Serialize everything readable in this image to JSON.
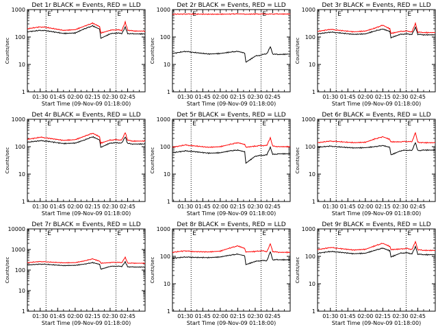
{
  "colors": {
    "events": "#000000",
    "lld": "#ff0000",
    "axis": "#000000",
    "background": "#ffffff"
  },
  "x_ticks": [
    "01:30",
    "01:45",
    "02:00",
    "02:15",
    "02:30",
    "02:45"
  ],
  "x_tick_minutes": [
    90,
    105,
    120,
    135,
    150,
    165
  ],
  "x_range_minutes": [
    79,
    180
  ],
  "event_lines_minutes": [
    95,
    155
  ],
  "event_marker_text": [
    "E",
    "E"
  ],
  "y_label": "Counts/sec",
  "chart_data": [
    {
      "type": "line",
      "title": "Det 1r BLACK = Events, RED = LLD",
      "xlabel": "Start Time (09-Nov-09 01:18:00)",
      "ylabel": "Counts/sec",
      "yscale": "log",
      "ylim": [
        1,
        1000
      ],
      "y_ticks": [
        "1",
        "10",
        "100",
        "1000"
      ],
      "x": [
        79,
        90,
        95,
        110,
        120,
        128,
        135,
        141,
        142,
        150,
        155,
        160,
        163,
        165,
        170,
        180
      ],
      "series": [
        {
          "name": "Events",
          "color": "black",
          "values": [
            155,
            175,
            170,
            135,
            140,
            200,
            255,
            195,
            90,
            130,
            140,
            135,
            230,
            135,
            130,
            130
          ]
        },
        {
          "name": "LLD",
          "color": "red",
          "values": [
            200,
            235,
            225,
            175,
            185,
            250,
            320,
            240,
            140,
            175,
            185,
            175,
            350,
            180,
            165,
            165
          ]
        }
      ]
    },
    {
      "type": "line",
      "title": "Det 2r BLACK = Events, RED = LLD",
      "xlabel": "Start Time (09-Nov-09 01:18:00)",
      "ylabel": "Counts/sec",
      "yscale": "log",
      "ylim": [
        1,
        1000
      ],
      "y_ticks": [
        "1",
        "10",
        "100",
        "1000"
      ],
      "x": [
        79,
        90,
        95,
        110,
        120,
        128,
        135,
        141,
        142,
        150,
        155,
        160,
        163,
        165,
        170,
        180
      ],
      "series": [
        {
          "name": "Events",
          "color": "black",
          "values": [
            25,
            30,
            28,
            24,
            25,
            28,
            30,
            26,
            12,
            20,
            22,
            25,
            45,
            24,
            23,
            24
          ]
        },
        {
          "name": "LLD",
          "color": "red",
          "values": [
            680,
            690,
            685,
            680,
            680,
            690,
            700,
            690,
            680,
            690,
            690,
            690,
            700,
            690,
            690,
            690
          ]
        }
      ]
    },
    {
      "type": "line",
      "title": "Det 3r BLACK = Events, RED = LLD",
      "xlabel": "Start Time (09-Nov-09 01:18:00)",
      "ylabel": "Counts/sec",
      "yscale": "log",
      "ylim": [
        1,
        1000
      ],
      "y_ticks": [
        "1",
        "10",
        "100",
        "1000"
      ],
      "x": [
        79,
        90,
        95,
        110,
        120,
        128,
        135,
        141,
        142,
        150,
        155,
        160,
        163,
        165,
        170,
        180
      ],
      "series": [
        {
          "name": "Events",
          "color": "black",
          "values": [
            130,
            150,
            145,
            125,
            130,
            165,
            195,
            160,
            95,
            125,
            130,
            125,
            230,
            125,
            120,
            120
          ]
        },
        {
          "name": "LLD",
          "color": "red",
          "values": [
            160,
            190,
            180,
            155,
            165,
            210,
            270,
            200,
            135,
            160,
            165,
            155,
            320,
            150,
            145,
            145
          ]
        }
      ]
    },
    {
      "type": "line",
      "title": "Det 4r BLACK = Events, RED = LLD",
      "xlabel": "Start Time (09-Nov-09 01:18:00)",
      "ylabel": "Counts/sec",
      "yscale": "log",
      "ylim": [
        1,
        1000
      ],
      "y_ticks": [
        "1",
        "10",
        "100",
        "1000"
      ],
      "x": [
        79,
        90,
        95,
        110,
        120,
        128,
        135,
        141,
        142,
        150,
        155,
        160,
        163,
        165,
        170,
        180
      ],
      "series": [
        {
          "name": "Events",
          "color": "black",
          "values": [
            145,
            165,
            160,
            130,
            135,
            175,
            230,
            175,
            95,
            135,
            140,
            135,
            230,
            130,
            125,
            125
          ]
        },
        {
          "name": "LLD",
          "color": "red",
          "values": [
            185,
            220,
            210,
            170,
            180,
            240,
            310,
            230,
            135,
            175,
            180,
            175,
            330,
            170,
            160,
            160
          ]
        }
      ]
    },
    {
      "type": "line",
      "title": "Det 5r BLACK = Events, RED = LLD",
      "xlabel": "Start Time (09-Nov-09 01:18:00)",
      "ylabel": "Counts/sec",
      "yscale": "log",
      "ylim": [
        1,
        1000
      ],
      "y_ticks": [
        "1",
        "10",
        "100",
        "1000"
      ],
      "x": [
        79,
        90,
        95,
        110,
        120,
        128,
        135,
        141,
        142,
        150,
        155,
        160,
        163,
        165,
        170,
        180
      ],
      "series": [
        {
          "name": "Events",
          "color": "black",
          "values": [
            60,
            70,
            68,
            58,
            60,
            70,
            75,
            65,
            25,
            45,
            48,
            50,
            95,
            52,
            55,
            55
          ]
        },
        {
          "name": "LLD",
          "color": "red",
          "values": [
            95,
            115,
            110,
            95,
            100,
            120,
            140,
            120,
            95,
            105,
            110,
            110,
            210,
            105,
            100,
            100
          ]
        }
      ]
    },
    {
      "type": "line",
      "title": "Det 6r BLACK = Events, RED = LLD",
      "xlabel": "Start Time (09-Nov-09 01:18:00)",
      "ylabel": "Counts/sec",
      "yscale": "log",
      "ylim": [
        1,
        1000
      ],
      "y_ticks": [
        "1",
        "10",
        "100",
        "1000"
      ],
      "x": [
        79,
        90,
        95,
        110,
        120,
        128,
        135,
        141,
        142,
        150,
        155,
        160,
        163,
        165,
        170,
        180
      ],
      "series": [
        {
          "name": "Events",
          "color": "black",
          "values": [
            95,
            105,
            100,
            90,
            92,
            100,
            110,
            95,
            50,
            70,
            75,
            72,
            140,
            72,
            75,
            75
          ]
        },
        {
          "name": "LLD",
          "color": "red",
          "values": [
            140,
            160,
            155,
            140,
            145,
            190,
            230,
            185,
            150,
            150,
            155,
            150,
            320,
            145,
            140,
            140
          ]
        }
      ]
    },
    {
      "type": "line",
      "title": "Det 7r BLACK = Events, RED = LLD",
      "xlabel": "Start Time (09-Nov-09 01:18:00)",
      "ylabel": "Counts/sec",
      "yscale": "log",
      "ylim": [
        1,
        10000
      ],
      "y_ticks": [
        "1",
        "10",
        "100",
        "1000",
        "10000"
      ],
      "x": [
        79,
        90,
        95,
        110,
        120,
        128,
        135,
        141,
        142,
        150,
        155,
        160,
        163,
        165,
        170,
        180
      ],
      "series": [
        {
          "name": "Events",
          "color": "black",
          "values": [
            175,
            195,
            190,
            165,
            170,
            195,
            230,
            190,
            110,
            150,
            155,
            150,
            250,
            145,
            140,
            140
          ]
        },
        {
          "name": "LLD",
          "color": "red",
          "values": [
            230,
            260,
            250,
            225,
            230,
            280,
            350,
            270,
            215,
            230,
            240,
            230,
            420,
            220,
            215,
            215
          ]
        }
      ]
    },
    {
      "type": "line",
      "title": "Det 8r BLACK = Events, RED = LLD",
      "xlabel": "Start Time (09-Nov-09 01:18:00)",
      "ylabel": "Counts/sec",
      "yscale": "log",
      "ylim": [
        1,
        1000
      ],
      "y_ticks": [
        "1",
        "10",
        "100",
        "1000"
      ],
      "x": [
        79,
        90,
        95,
        110,
        120,
        128,
        135,
        141,
        142,
        150,
        155,
        160,
        163,
        165,
        170,
        180
      ],
      "series": [
        {
          "name": "Events",
          "color": "black",
          "values": [
            85,
            95,
            92,
            90,
            95,
            110,
            120,
            105,
            50,
            65,
            70,
            70,
            150,
            75,
            75,
            75
          ]
        },
        {
          "name": "LLD",
          "color": "red",
          "values": [
            140,
            160,
            150,
            145,
            155,
            200,
            240,
            195,
            145,
            150,
            160,
            150,
            290,
            150,
            140,
            140
          ]
        }
      ]
    },
    {
      "type": "line",
      "title": "Det 9r BLACK = Events, RED = LLD",
      "xlabel": "Start Time (09-Nov-09 01:18:00)",
      "ylabel": "Counts/sec",
      "yscale": "log",
      "ylim": [
        1,
        1000
      ],
      "y_ticks": [
        "1",
        "10",
        "100",
        "1000"
      ],
      "x": [
        79,
        90,
        95,
        110,
        120,
        128,
        135,
        141,
        142,
        150,
        155,
        160,
        163,
        165,
        170,
        180
      ],
      "series": [
        {
          "name": "Events",
          "color": "black",
          "values": [
            130,
            150,
            145,
            125,
            130,
            165,
            200,
            160,
            95,
            130,
            135,
            125,
            230,
            120,
            115,
            115
          ]
        },
        {
          "name": "LLD",
          "color": "red",
          "values": [
            175,
            210,
            200,
            170,
            180,
            240,
            300,
            230,
            175,
            185,
            195,
            180,
            350,
            175,
            165,
            165
          ]
        }
      ]
    }
  ]
}
